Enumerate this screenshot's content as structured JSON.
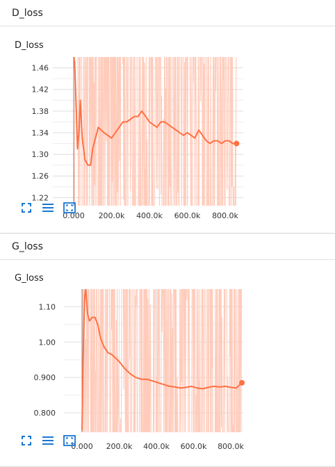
{
  "colors": {
    "line": "#ff7043",
    "raw": "#ffccbc",
    "grid": "#dddddd",
    "icon": "#1976d2"
  },
  "toolbar": {
    "icons": [
      "expand-icon",
      "list-icon",
      "fit-domain-icon"
    ]
  },
  "panels": [
    {
      "header": "D_loss",
      "title": "D_loss"
    },
    {
      "header": "G_loss",
      "title": "G_loss"
    }
  ],
  "chart_data": [
    {
      "type": "line",
      "title": "D_loss",
      "x_ticks": [
        "0.000",
        "200.0k",
        "400.0k",
        "600.0k",
        "800.0k"
      ],
      "y_ticks": [
        "1.22",
        "1.26",
        "1.30",
        "1.34",
        "1.38",
        "1.42",
        "1.46"
      ],
      "xlim": [
        0,
        870000
      ],
      "ylim": [
        1.205,
        1.48
      ],
      "smoothed": {
        "x": [
          0,
          5000,
          12000,
          20000,
          28000,
          35000,
          45000,
          60000,
          75000,
          90000,
          100000,
          115000,
          130000,
          145000,
          160000,
          180000,
          200000,
          220000,
          240000,
          260000,
          280000,
          300000,
          320000,
          340000,
          360000,
          380000,
          400000,
          420000,
          440000,
          460000,
          480000,
          500000,
          520000,
          540000,
          560000,
          580000,
          600000,
          620000,
          640000,
          660000,
          680000,
          700000,
          720000,
          740000,
          760000,
          780000,
          800000,
          820000,
          840000,
          860000
        ],
        "y": [
          1.48,
          1.47,
          1.4,
          1.31,
          1.34,
          1.4,
          1.33,
          1.29,
          1.28,
          1.28,
          1.31,
          1.33,
          1.35,
          1.345,
          1.34,
          1.335,
          1.33,
          1.34,
          1.35,
          1.36,
          1.36,
          1.365,
          1.37,
          1.37,
          1.38,
          1.37,
          1.36,
          1.355,
          1.35,
          1.36,
          1.36,
          1.355,
          1.35,
          1.345,
          1.34,
          1.335,
          1.34,
          1.335,
          1.33,
          1.345,
          1.335,
          1.325,
          1.32,
          1.325,
          1.325,
          1.32,
          1.325,
          1.325,
          1.32,
          1.32
        ]
      },
      "raw_range": [
        1.205,
        1.48
      ]
    },
    {
      "type": "line",
      "title": "G_loss",
      "x_ticks": [
        "0.000",
        "200.0k",
        "400.0k",
        "600.0k",
        "800.0k"
      ],
      "y_ticks": [
        "0.800",
        "0.900",
        "1.00",
        "1.10"
      ],
      "xlim": [
        0,
        870000
      ],
      "ylim": [
        0.745,
        1.15
      ],
      "smoothed": {
        "x": [
          0,
          5000,
          10000,
          15000,
          20000,
          30000,
          40000,
          55000,
          70000,
          85000,
          100000,
          120000,
          140000,
          160000,
          180000,
          200000,
          230000,
          260000,
          290000,
          320000,
          350000,
          380000,
          410000,
          440000,
          470000,
          500000,
          530000,
          560000,
          590000,
          620000,
          650000,
          680000,
          710000,
          740000,
          770000,
          800000,
          830000,
          860000
        ],
        "y": [
          0.75,
          0.93,
          1.05,
          1.13,
          1.15,
          1.08,
          1.06,
          1.07,
          1.07,
          1.05,
          1.01,
          0.985,
          0.97,
          0.965,
          0.955,
          0.945,
          0.925,
          0.91,
          0.9,
          0.895,
          0.895,
          0.89,
          0.885,
          0.88,
          0.875,
          0.873,
          0.87,
          0.872,
          0.875,
          0.87,
          0.868,
          0.872,
          0.875,
          0.873,
          0.875,
          0.872,
          0.87,
          0.885
        ]
      },
      "raw_range": [
        0.745,
        1.15
      ]
    }
  ]
}
